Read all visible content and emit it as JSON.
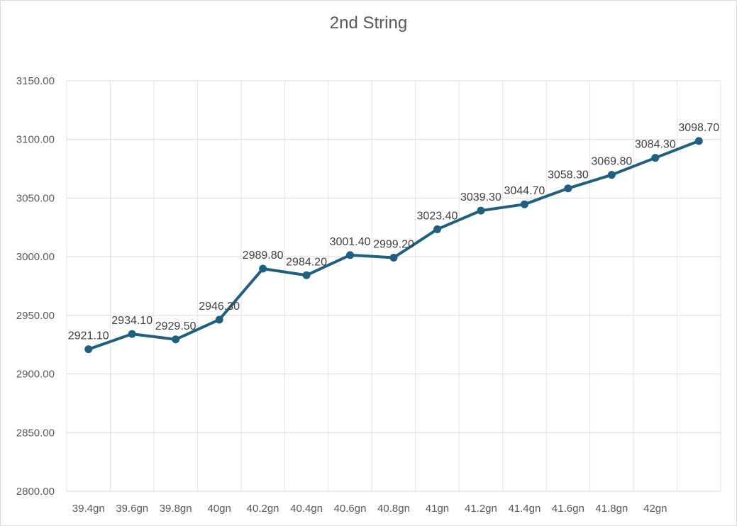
{
  "chart_data": {
    "type": "line",
    "title": "2nd String",
    "xlabel": "",
    "ylabel": "",
    "categories": [
      "39.4gn",
      "39.6gn",
      "39.8gn",
      "40gn",
      "40.2gn",
      "40.4gn",
      "40.6gn",
      "40.8gn",
      "41gn",
      "41.2gn",
      "41.4gn",
      "41.6gn",
      "41.8gn",
      "42gn",
      ""
    ],
    "series": [
      {
        "values": [
          2921.1,
          2934.1,
          2929.5,
          2946.3,
          2989.8,
          2984.2,
          3001.4,
          2999.2,
          3023.4,
          3039.3,
          3044.7,
          3058.3,
          3069.8,
          3084.3,
          3098.7
        ],
        "labels": [
          "2921.10",
          "2934.10",
          "2929.50",
          "2946.30",
          "2989.80",
          "2984.20",
          "3001.40",
          "2999.20",
          "3023.40",
          "3039.30",
          "3044.70",
          "3058.30",
          "3069.80",
          "3084.30",
          "3098.70"
        ],
        "color": "#1f5f7f"
      }
    ],
    "ylim": [
      2800,
      3150
    ],
    "yticks": [
      "2800.00",
      "2850.00",
      "2900.00",
      "2950.00",
      "3000.00",
      "3050.00",
      "3100.00",
      "3150.00"
    ],
    "grid": true,
    "legend": "none"
  }
}
